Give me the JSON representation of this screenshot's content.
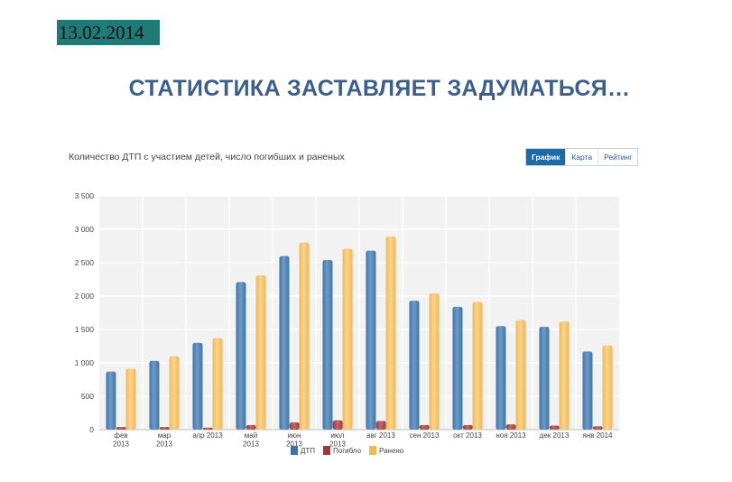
{
  "date": "13.02.2014",
  "slide_title": "СТАТИСТИКА ЗАСТАВЛЯЕТ ЗАДУМАТЬСЯ…",
  "tabs": [
    {
      "label": "График",
      "active": true
    },
    {
      "label": "Карта",
      "active": false
    },
    {
      "label": "Рейтинг",
      "active": false
    }
  ],
  "colors": {
    "dtp": "#3f74a7",
    "dead": "#9c3b3a",
    "injured": "#f3b755",
    "plot_bg": "#f2f2f2",
    "badge": "#1f7a78",
    "title": "#3b5f8a"
  },
  "chart_data": {
    "type": "bar",
    "title": "Количество ДТП с участием детей, число погибших и раненых",
    "categories": [
      [
        "фев",
        "2013"
      ],
      [
        "мар",
        "2013"
      ],
      [
        "апр 2013"
      ],
      [
        "май",
        "2013"
      ],
      [
        "июн",
        "2013"
      ],
      [
        "июл",
        "2013"
      ],
      [
        "авг 2013"
      ],
      [
        "сен 2013"
      ],
      [
        "окт 2013"
      ],
      [
        "ноя 2013"
      ],
      [
        "дек 2013"
      ],
      [
        "янв 2014"
      ]
    ],
    "series": [
      {
        "name": "ДТП",
        "values": [
          870,
          1030,
          1300,
          2210,
          2600,
          2540,
          2680,
          1930,
          1840,
          1550,
          1540,
          1170
        ]
      },
      {
        "name": "Погибло",
        "values": [
          40,
          40,
          30,
          70,
          110,
          140,
          130,
          70,
          70,
          80,
          60,
          50
        ]
      },
      {
        "name": "Ранено",
        "values": [
          910,
          1100,
          1370,
          2310,
          2800,
          2710,
          2890,
          2040,
          1910,
          1640,
          1620,
          1260
        ]
      }
    ],
    "ylim": [
      0,
      3500
    ],
    "yticks": [
      "0",
      "500",
      "1 000",
      "1 500",
      "2 000",
      "2 500",
      "3 000",
      "3 500"
    ],
    "grid": true,
    "legend": "bottom-center"
  }
}
